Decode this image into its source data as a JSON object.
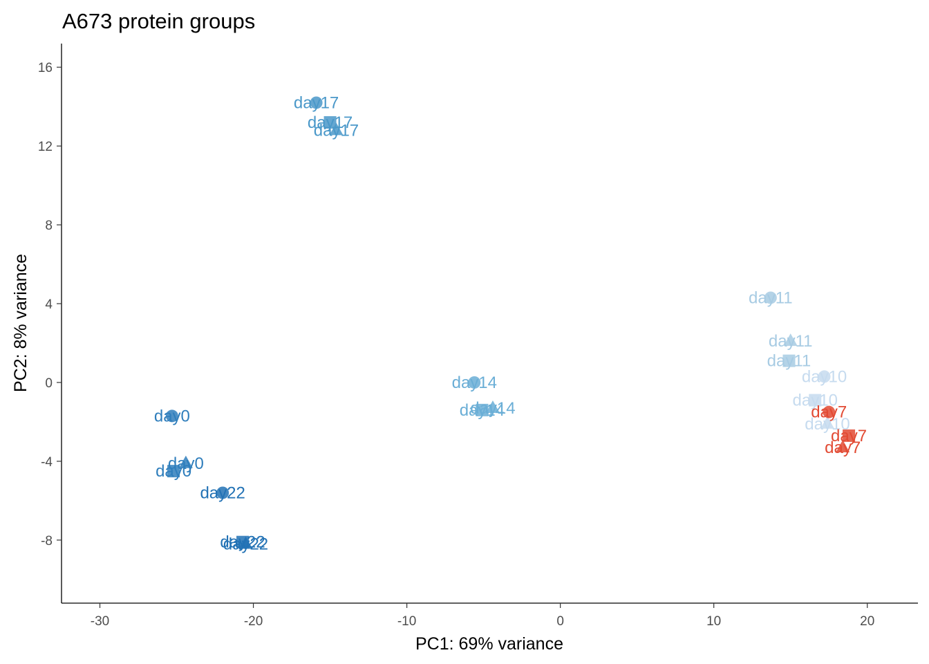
{
  "chart_data": {
    "type": "scatter",
    "title": "A673 protein groups",
    "xlabel": "PC1: 69% variance",
    "ylabel": "PC2: 8% variance",
    "xlim": [
      -32.5,
      23.3
    ],
    "ylim": [
      -11.2,
      17.2
    ],
    "xticks": [
      -30,
      -20,
      -10,
      0,
      10,
      20
    ],
    "yticks": [
      -8,
      -4,
      0,
      4,
      8,
      12,
      16
    ],
    "grid": false,
    "legend": "none",
    "colors": {
      "day0": "#2f7ebc",
      "day7": "#e24a33",
      "day10": "#c6dbef",
      "day11": "#a7cbe3",
      "day14": "#6aaed6",
      "day17": "#4a98c9",
      "day22": "#2272b5"
    },
    "points": [
      {
        "label": "day17",
        "shape": "circle",
        "x": -15.9,
        "y": 14.2
      },
      {
        "label": "day17",
        "shape": "square",
        "x": -15.0,
        "y": 13.2
      },
      {
        "label": "day17",
        "shape": "triangle",
        "x": -14.6,
        "y": 12.8
      },
      {
        "label": "day14",
        "shape": "circle",
        "x": -5.6,
        "y": 0.0
      },
      {
        "label": "day14",
        "shape": "square",
        "x": -5.1,
        "y": -1.4
      },
      {
        "label": "day14",
        "shape": "triangle",
        "x": -4.4,
        "y": -1.3
      },
      {
        "label": "day0",
        "shape": "circle",
        "x": -25.3,
        "y": -1.7
      },
      {
        "label": "day0",
        "shape": "triangle",
        "x": -24.4,
        "y": -4.1
      },
      {
        "label": "day0",
        "shape": "square",
        "x": -25.2,
        "y": -4.5
      },
      {
        "label": "day22",
        "shape": "circle",
        "x": -22.0,
        "y": -5.6
      },
      {
        "label": "day22",
        "shape": "square",
        "x": -20.7,
        "y": -8.1
      },
      {
        "label": "day22",
        "shape": "triangle",
        "x": -20.5,
        "y": -8.2
      },
      {
        "label": "day11",
        "shape": "circle",
        "x": 13.7,
        "y": 4.3
      },
      {
        "label": "day11",
        "shape": "triangle",
        "x": 15.0,
        "y": 2.1
      },
      {
        "label": "day11",
        "shape": "square",
        "x": 14.9,
        "y": 1.1
      },
      {
        "label": "day10",
        "shape": "circle",
        "x": 17.2,
        "y": 0.3
      },
      {
        "label": "day10",
        "shape": "square",
        "x": 16.6,
        "y": -0.9
      },
      {
        "label": "day10",
        "shape": "triangle",
        "x": 17.4,
        "y": -2.1
      },
      {
        "label": "day7",
        "shape": "circle",
        "x": 17.5,
        "y": -1.5
      },
      {
        "label": "day7",
        "shape": "square",
        "x": 18.8,
        "y": -2.7
      },
      {
        "label": "day7",
        "shape": "triangle",
        "x": 18.4,
        "y": -3.3
      }
    ]
  }
}
